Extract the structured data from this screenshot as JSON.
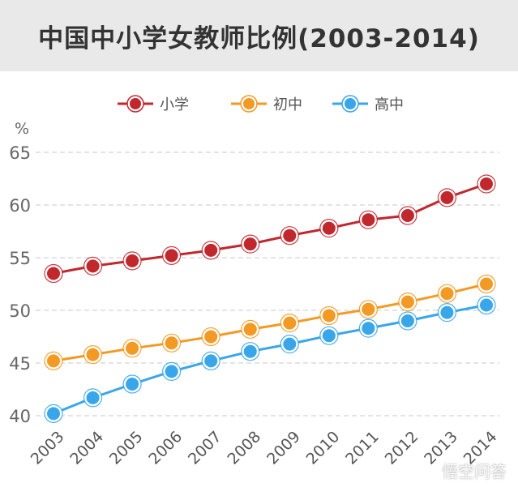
{
  "chart_data": {
    "type": "line",
    "title": "中国中小学女教师比例(2003-2014)",
    "ylabel": "%",
    "xlabel": "",
    "ylim": [
      40,
      65
    ],
    "yticks": [
      40,
      45,
      50,
      55,
      60,
      65
    ],
    "grid": true,
    "legend_position": "top",
    "categories": [
      "2003",
      "2004",
      "2005",
      "2006",
      "2007",
      "2008",
      "2009",
      "2010",
      "2011",
      "2012",
      "2013",
      "2014"
    ],
    "series": [
      {
        "name": "小学",
        "color": "#c0282e",
        "values": [
          53.5,
          54.2,
          54.7,
          55.2,
          55.7,
          56.3,
          57.1,
          57.8,
          58.6,
          59.0,
          60.7,
          62.0
        ]
      },
      {
        "name": "初中",
        "color": "#f39a24",
        "values": [
          45.2,
          45.8,
          46.4,
          46.9,
          47.5,
          48.2,
          48.8,
          49.5,
          50.1,
          50.8,
          51.6,
          52.5
        ]
      },
      {
        "name": "高中",
        "color": "#3aa6ea",
        "values": [
          40.2,
          41.7,
          43.0,
          44.2,
          45.2,
          46.1,
          46.8,
          47.6,
          48.3,
          49.0,
          49.8,
          50.5
        ]
      }
    ]
  },
  "watermark": "悟空问答"
}
